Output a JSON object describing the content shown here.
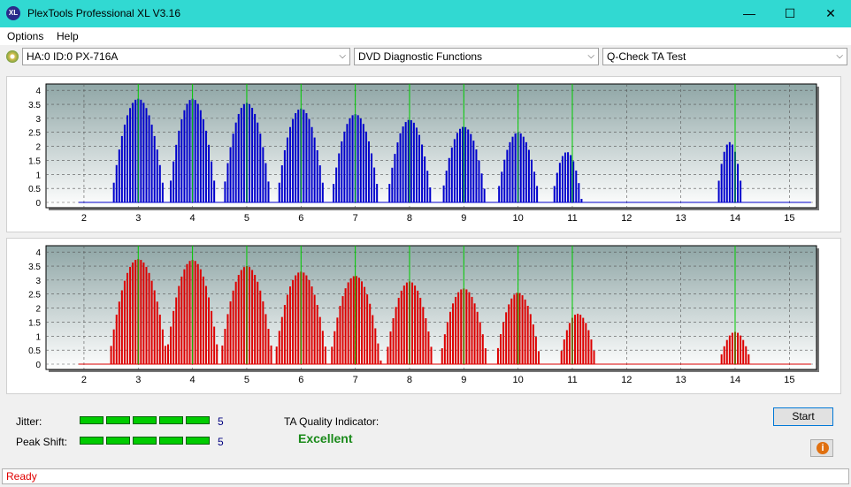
{
  "window": {
    "title": "PlexTools Professional XL V3.16",
    "icon_label": "XL",
    "minimize_glyph": "—",
    "maximize_glyph": "☐",
    "close_glyph": "✕"
  },
  "menu": {
    "items": [
      "Options",
      "Help"
    ]
  },
  "toolbar": {
    "drive": "HA:0 ID:0  PX-716A",
    "function": "DVD Diagnostic Functions",
    "test": "Q-Check TA Test"
  },
  "colors": {
    "titlebar": "#31d9d2",
    "land_bars": "#0000cc",
    "pit_bars": "#dd0000",
    "marker_lines": "#00cc00",
    "meter_on": "#00cc00",
    "quality_text": "#1a8a1a",
    "status_text": "#e00000"
  },
  "chart_data": [
    {
      "type": "bar",
      "name": "upper",
      "x_ticks": [
        2,
        3,
        4,
        5,
        6,
        7,
        8,
        9,
        10,
        11,
        12,
        13,
        14,
        15
      ],
      "y_ticks": [
        0,
        0.5,
        1,
        1.5,
        2,
        2.5,
        3,
        3.5,
        4
      ],
      "xlim": [
        1.3,
        15.5
      ],
      "ylim": [
        0,
        4.1
      ],
      "markers": [
        3,
        4,
        5,
        6,
        7,
        8,
        9,
        10,
        11,
        14
      ],
      "peaks": [
        {
          "center": 3.0,
          "height": 3.7,
          "halfwidth": 0.5
        },
        {
          "center": 4.0,
          "height": 3.7,
          "halfwidth": 0.45
        },
        {
          "center": 5.0,
          "height": 3.55,
          "halfwidth": 0.45
        },
        {
          "center": 6.0,
          "height": 3.35,
          "halfwidth": 0.45
        },
        {
          "center": 7.0,
          "height": 3.15,
          "halfwidth": 0.45
        },
        {
          "center": 8.0,
          "height": 2.95,
          "halfwidth": 0.42
        },
        {
          "center": 9.0,
          "height": 2.7,
          "halfwidth": 0.42
        },
        {
          "center": 10.0,
          "height": 2.5,
          "halfwidth": 0.4
        },
        {
          "center": 10.9,
          "height": 1.8,
          "halfwidth": 0.28
        },
        {
          "center": 13.9,
          "height": 2.15,
          "halfwidth": 0.25
        }
      ],
      "grid": true
    },
    {
      "type": "bar",
      "name": "lower",
      "x_ticks": [
        2,
        3,
        4,
        5,
        6,
        7,
        8,
        9,
        10,
        11,
        12,
        13,
        14,
        15
      ],
      "y_ticks": [
        0,
        0.5,
        1,
        1.5,
        2,
        2.5,
        3,
        3.5,
        4
      ],
      "xlim": [
        1.3,
        15.5
      ],
      "ylim": [
        0,
        4.1
      ],
      "markers": [
        3,
        4,
        5,
        6,
        7,
        8,
        9,
        10,
        11,
        14
      ],
      "peaks": [
        {
          "center": 3.0,
          "height": 3.75,
          "halfwidth": 0.55
        },
        {
          "center": 4.0,
          "height": 3.72,
          "halfwidth": 0.5
        },
        {
          "center": 5.0,
          "height": 3.5,
          "halfwidth": 0.5
        },
        {
          "center": 6.0,
          "height": 3.3,
          "halfwidth": 0.5
        },
        {
          "center": 7.0,
          "height": 3.15,
          "halfwidth": 0.48
        },
        {
          "center": 8.0,
          "height": 2.95,
          "halfwidth": 0.45
        },
        {
          "center": 9.0,
          "height": 2.7,
          "halfwidth": 0.45
        },
        {
          "center": 10.0,
          "height": 2.55,
          "halfwidth": 0.42
        },
        {
          "center": 11.1,
          "height": 1.8,
          "halfwidth": 0.35
        },
        {
          "center": 14.0,
          "height": 1.15,
          "halfwidth": 0.3
        }
      ],
      "grid": true
    }
  ],
  "bottom": {
    "jitter_label": "Jitter:",
    "jitter_value": "5",
    "jitter_level": 5,
    "peak_shift_label": "Peak Shift:",
    "peak_shift_value": "5",
    "peak_shift_level": 5,
    "ta_label": "TA Quality Indicator:",
    "ta_value": "Excellent",
    "start_label": "Start",
    "info_glyph": "i"
  },
  "status": {
    "text": "Ready"
  }
}
